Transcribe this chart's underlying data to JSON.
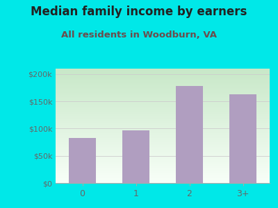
{
  "title": "Median family income by earners",
  "subtitle": "All residents in Woodburn, VA",
  "categories": [
    "0",
    "1",
    "2",
    "3+"
  ],
  "values": [
    83000,
    97000,
    178000,
    163000
  ],
  "bar_color": "#b09ec0",
  "title_color": "#222222",
  "subtitle_color": "#6b4c4c",
  "bg_color": "#00e8e8",
  "plot_bg_topleft": "#c8e8c8",
  "plot_bg_bottomright": "#f8fff8",
  "yticks": [
    0,
    50000,
    100000,
    150000,
    200000
  ],
  "ytick_labels": [
    "$0",
    "$50k",
    "$100k",
    "$150k",
    "$200k"
  ],
  "ylim": [
    0,
    210000
  ],
  "tick_label_color": "#666666",
  "grid_color": "#cccccc",
  "title_fontsize": 12,
  "subtitle_fontsize": 9.5
}
